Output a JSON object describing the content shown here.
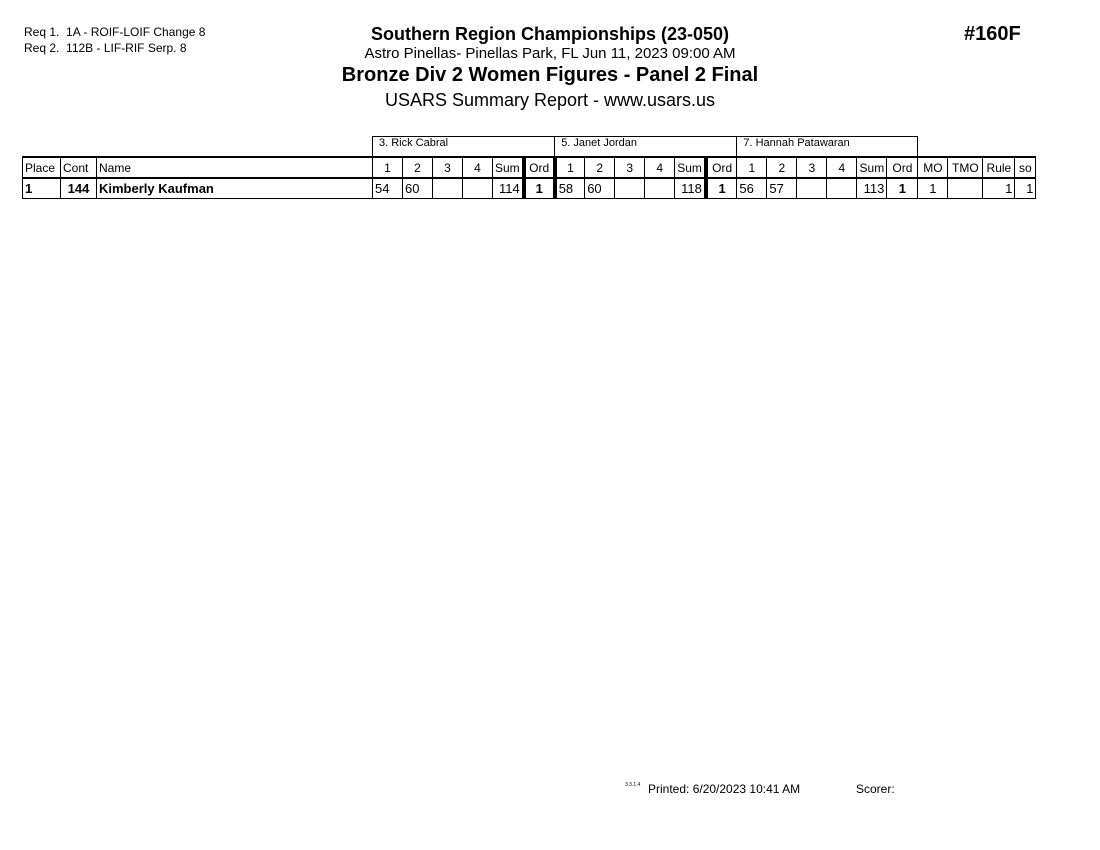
{
  "requirements": [
    {
      "label": "Req  1.",
      "text": "1A - ROIF-LOIF Change 8"
    },
    {
      "label": "Req  2.",
      "text": "112B - LIF-RIF Serp. 8"
    }
  ],
  "header": {
    "title": "Southern Region Championships (23-050)",
    "venue": "Astro Pinellas- Pinellas Park, FL  Jun 11, 2023  09:00 AM",
    "event": "Bronze Div 2 Women Figures - Panel 2 Final",
    "report": "USARS Summary Report - www.usars.us",
    "event_number": "#160F"
  },
  "table": {
    "judges": [
      "3.  Rick Cabral",
      "5.  Janet Jordan",
      "7.  Hannah Patawaran"
    ],
    "columns": {
      "place": "Place",
      "cont": "Cont",
      "name": "Name",
      "judge_cols": [
        "1",
        "2",
        "3",
        "4",
        "Sum",
        "Ord"
      ],
      "mo": "MO",
      "tmo": "TMO",
      "rule": "Rule",
      "so": "so"
    },
    "rows": [
      {
        "place": "1",
        "cont": "144",
        "name": "Kimberly Kaufman",
        "judges": [
          {
            "s1": "54",
            "s2": "60",
            "s3": "",
            "s4": "",
            "sum": "114",
            "ord": "1"
          },
          {
            "s1": "58",
            "s2": "60",
            "s3": "",
            "s4": "",
            "sum": "118",
            "ord": "1"
          },
          {
            "s1": "56",
            "s2": "57",
            "s3": "",
            "s4": "",
            "sum": "113",
            "ord": "1"
          }
        ],
        "mo": "1",
        "tmo": "",
        "rule": "1",
        "so": "1"
      }
    ]
  },
  "footer": {
    "version": "3.3.1.4",
    "printed": "Printed:  6/20/2023  10:41 AM",
    "scorer": "Scorer:"
  }
}
